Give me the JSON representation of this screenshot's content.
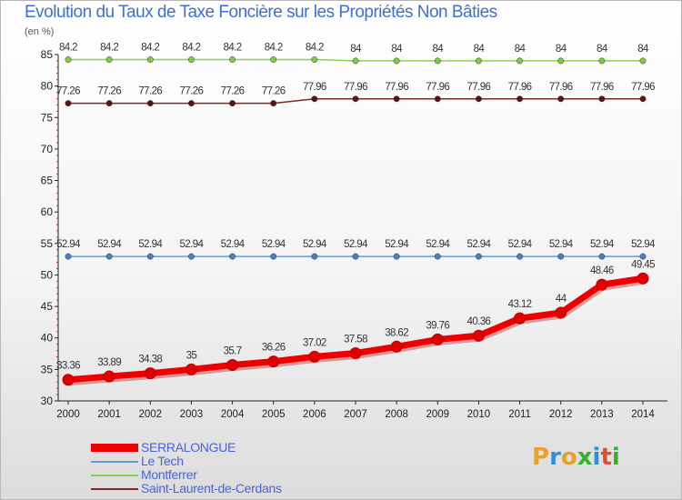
{
  "page": {
    "title": "Evolution du Taux de Taxe Foncière sur les Propriétés Non Bâties",
    "unit_label": "(en %)",
    "brand": "Proxiti"
  },
  "chart_data": {
    "type": "line",
    "title": "Evolution du Taux de Taxe Foncière sur les Propriétés Non Bâties",
    "ylabel": "(en %)",
    "xlabel": "",
    "ylim": [
      30,
      85
    ],
    "yticks": [
      30,
      35,
      40,
      45,
      50,
      55,
      60,
      65,
      70,
      75,
      80,
      85
    ],
    "grid": false,
    "x": [
      "2000",
      "2001",
      "2002",
      "2003",
      "2004",
      "2005",
      "2006",
      "2007",
      "2008",
      "2009",
      "2010",
      "2011",
      "2012",
      "2013",
      "2014"
    ],
    "series": [
      {
        "name": "Montferrer",
        "color": "#88d058",
        "marker": "#7ccc44",
        "values": [
          84.2,
          84.2,
          84.2,
          84.2,
          84.2,
          84.2,
          84.2,
          84,
          84,
          84,
          84,
          84,
          84,
          84,
          84
        ],
        "labels": [
          "84.2",
          "84.2",
          "84.2",
          "84.2",
          "84.2",
          "84.2",
          "84.2",
          "84",
          "84",
          "84",
          "84",
          "84",
          "84",
          "84",
          "84"
        ]
      },
      {
        "name": "Saint-Laurent-de-Cerdans",
        "color": "#7a2a2a",
        "marker": "#5a1414",
        "values": [
          77.26,
          77.26,
          77.26,
          77.26,
          77.26,
          77.26,
          77.96,
          77.96,
          77.96,
          77.96,
          77.96,
          77.96,
          77.96,
          77.96,
          77.96
        ],
        "labels": [
          "77.26",
          "77.26",
          "77.26",
          "77.26",
          "77.26",
          "77.26",
          "77.96",
          "77.96",
          "77.96",
          "77.96",
          "77.96",
          "77.96",
          "77.96",
          "77.96",
          "77.96"
        ]
      },
      {
        "name": "Le Tech",
        "color": "#6a9ad0",
        "marker": "#4a7fc0",
        "values": [
          52.94,
          52.94,
          52.94,
          52.94,
          52.94,
          52.94,
          52.94,
          52.94,
          52.94,
          52.94,
          52.94,
          52.94,
          52.94,
          52.94,
          52.94
        ],
        "labels": [
          "52.94",
          "52.94",
          "52.94",
          "52.94",
          "52.94",
          "52.94",
          "52.94",
          "52.94",
          "52.94",
          "52.94",
          "52.94",
          "52.94",
          "52.94",
          "52.94",
          "52.94"
        ]
      },
      {
        "name": "SERRALONGUE",
        "color": "#ee0000",
        "marker": "#e00000",
        "values": [
          33.36,
          33.89,
          34.38,
          35,
          35.7,
          36.26,
          37.02,
          37.58,
          38.62,
          39.76,
          40.36,
          43.12,
          44,
          48.46,
          49.45
        ],
        "labels": [
          "33.36",
          "33.89",
          "34.38",
          "35",
          "35.7",
          "36.26",
          "37.02",
          "37.58",
          "38.62",
          "39.76",
          "40.36",
          "43.12",
          "44",
          "48.46",
          "49.45"
        ]
      }
    ],
    "legend": [
      {
        "name": "SERRALONGUE",
        "color": "#ee0000",
        "thick": true
      },
      {
        "name": "Le Tech",
        "color": "#6a9ad0",
        "thick": false
      },
      {
        "name": "Montferrer",
        "color": "#88d058",
        "thick": false
      },
      {
        "name": "Saint-Laurent-de-Cerdans",
        "color": "#7a2a2a",
        "thick": false
      }
    ]
  }
}
